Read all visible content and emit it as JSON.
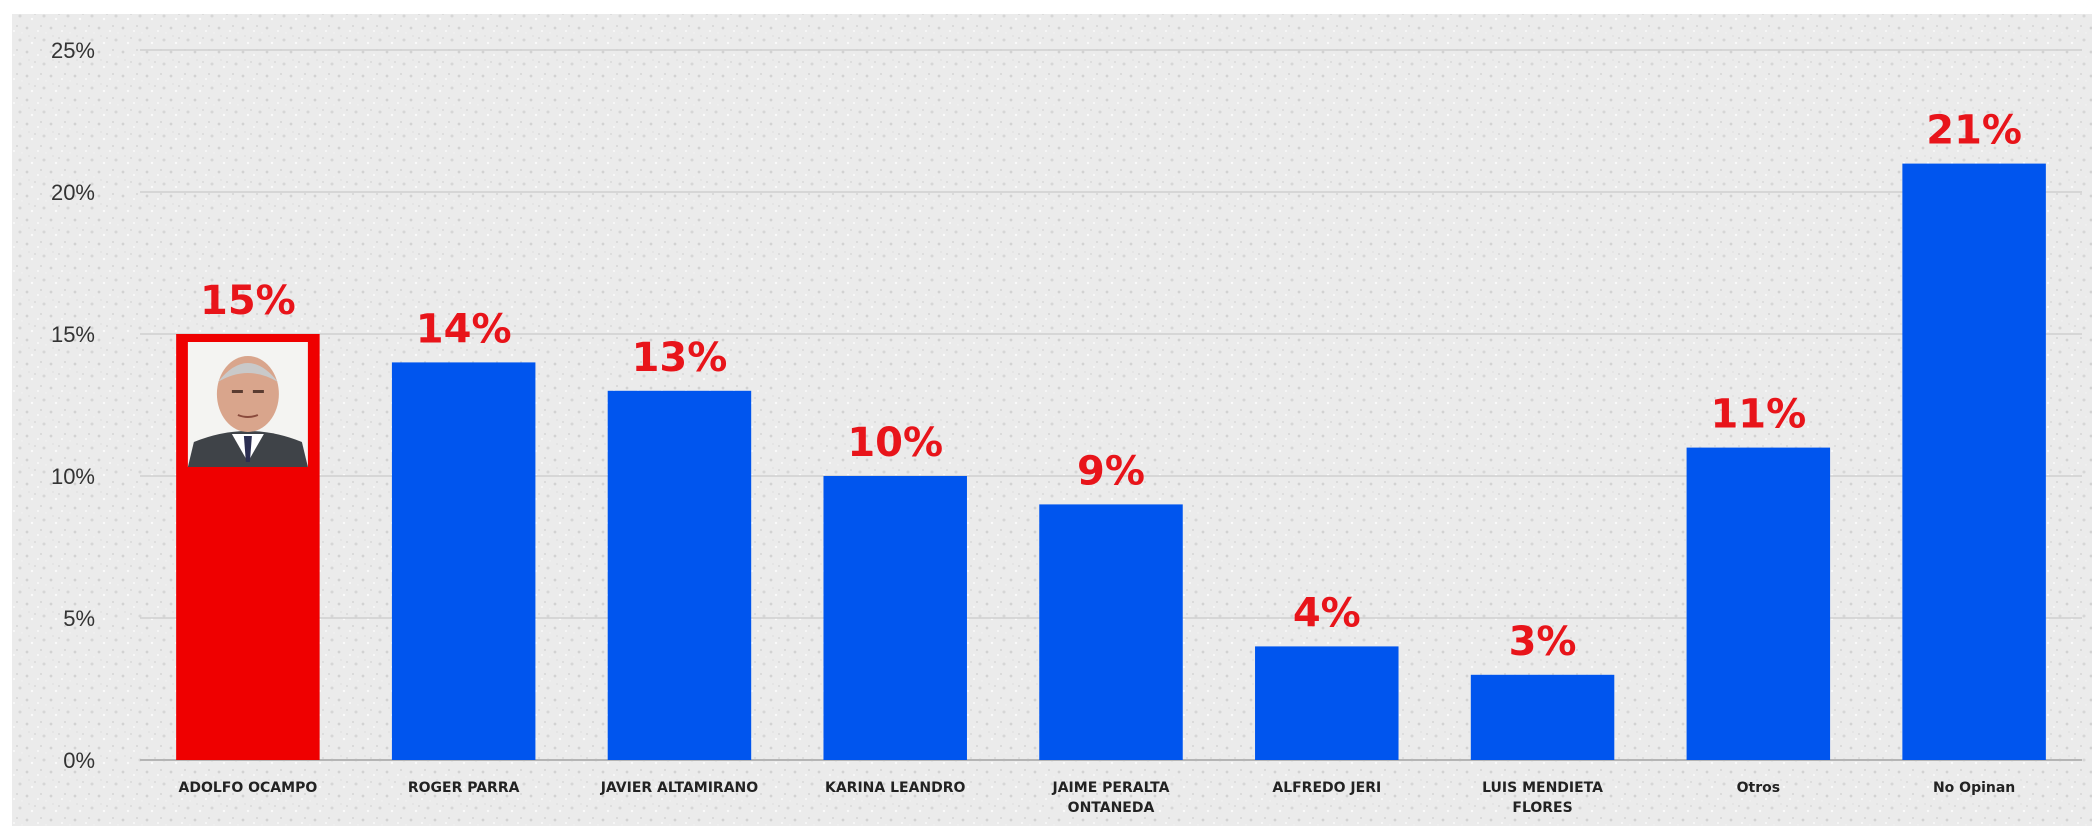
{
  "chart_data": {
    "type": "bar",
    "title": "",
    "xlabel": "",
    "ylabel": "",
    "ylim": [
      0,
      25
    ],
    "yticks": [
      0,
      5,
      10,
      15,
      20,
      25
    ],
    "ytick_labels": [
      "0%",
      "5%",
      "10%",
      "15%",
      "20%",
      "25%"
    ],
    "grid": true,
    "legend": "none",
    "categories": [
      [
        "ADOLFO OCAMPO"
      ],
      [
        "ROGER PARRA"
      ],
      [
        "JAVIER ALTAMIRANO"
      ],
      [
        "KARINA LEANDRO"
      ],
      [
        "JAIME PERALTA",
        "ONTANEDA"
      ],
      [
        "ALFREDO JERI"
      ],
      [
        "LUIS MENDIETA",
        "FLORES"
      ],
      [
        "Otros"
      ],
      [
        "No Opinan"
      ]
    ],
    "values": [
      15,
      14,
      13,
      10,
      9,
      4,
      3,
      11,
      21
    ],
    "data_labels": [
      "15%",
      "14%",
      "13%",
      "10%",
      "9%",
      "4%",
      "3%",
      "11%",
      "21%"
    ],
    "colors": [
      "#ef0000",
      "#0055ee",
      "#0055ee",
      "#0055ee",
      "#0055ee",
      "#0055ee",
      "#0055ee",
      "#0055ee",
      "#0055ee"
    ],
    "highlight_image": "candidate-portrait-photo"
  }
}
